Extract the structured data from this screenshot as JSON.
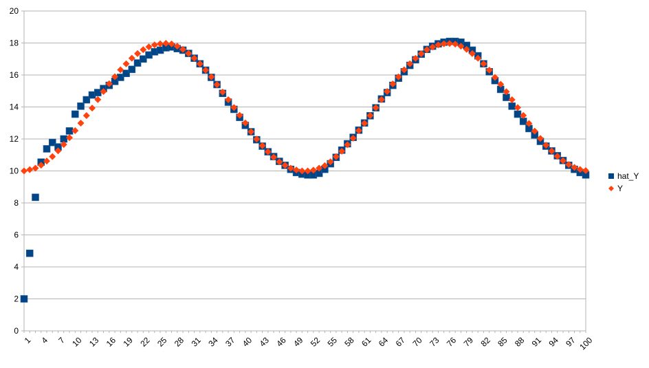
{
  "chart_data": {
    "type": "scatter",
    "xlim": [
      1,
      100
    ],
    "ylim": [
      0,
      20
    ],
    "x_tick_labels": [
      "1",
      "4",
      "7",
      "10",
      "13",
      "16",
      "19",
      "22",
      "25",
      "28",
      "31",
      "34",
      "37",
      "40",
      "43",
      "46",
      "49",
      "52",
      "55",
      "58",
      "61",
      "64",
      "67",
      "70",
      "73",
      "76",
      "79",
      "82",
      "85",
      "88",
      "91",
      "94",
      "97",
      "100"
    ],
    "y_tick_labels": [
      "0",
      "2",
      "4",
      "6",
      "8",
      "10",
      "12",
      "14",
      "16",
      "18",
      "20"
    ],
    "grid": "horizontal",
    "legend": "right",
    "series": [
      {
        "name": "hat_Y",
        "marker": "square",
        "color": "#004586",
        "values": [
          2.0,
          4.85,
          8.35,
          10.55,
          11.38,
          11.78,
          11.5,
          12.0,
          12.5,
          13.55,
          14.05,
          14.45,
          14.75,
          14.9,
          15.15,
          15.35,
          15.6,
          15.85,
          16.1,
          16.35,
          16.75,
          17.0,
          17.25,
          17.45,
          17.55,
          17.7,
          17.75,
          17.65,
          17.55,
          17.35,
          17.05,
          16.7,
          16.3,
          15.85,
          15.4,
          14.85,
          14.3,
          13.85,
          13.35,
          12.85,
          12.45,
          11.95,
          11.55,
          11.2,
          10.9,
          10.6,
          10.35,
          10.1,
          9.9,
          9.8,
          9.75,
          9.75,
          9.85,
          10.1,
          10.45,
          10.85,
          11.3,
          11.7,
          12.1,
          12.55,
          13.0,
          13.45,
          13.95,
          14.5,
          14.9,
          15.35,
          15.8,
          16.2,
          16.6,
          16.95,
          17.3,
          17.6,
          17.8,
          17.95,
          18.05,
          18.1,
          18.1,
          18.05,
          17.85,
          17.55,
          17.2,
          16.7,
          16.2,
          15.65,
          15.1,
          14.6,
          14.05,
          13.55,
          13.1,
          12.65,
          12.25,
          11.85,
          11.55,
          11.25,
          10.95,
          10.65,
          10.35,
          10.1,
          9.9,
          9.75
        ]
      },
      {
        "name": "Y",
        "marker": "diamond",
        "color": "#ff420e",
        "values": [
          10.0,
          10.08,
          10.17,
          10.36,
          10.62,
          10.9,
          11.26,
          11.65,
          12.08,
          12.52,
          12.99,
          13.46,
          13.93,
          14.46,
          14.97,
          15.45,
          15.89,
          16.32,
          16.7,
          17.05,
          17.34,
          17.58,
          17.76,
          17.88,
          17.95,
          17.98,
          17.94,
          17.8,
          17.6,
          17.35,
          17.05,
          16.7,
          16.3,
          15.88,
          15.4,
          14.93,
          14.45,
          13.96,
          13.48,
          13.0,
          12.45,
          11.99,
          11.58,
          11.2,
          10.86,
          10.57,
          10.35,
          10.17,
          10.06,
          10.0,
          10.0,
          10.05,
          10.17,
          10.33,
          10.57,
          10.89,
          11.23,
          11.64,
          12.05,
          12.52,
          12.98,
          13.46,
          13.95,
          14.46,
          14.97,
          15.44,
          15.88,
          16.32,
          16.7,
          17.04,
          17.33,
          17.58,
          17.75,
          17.88,
          17.95,
          17.97,
          17.93,
          17.8,
          17.6,
          17.34,
          17.05,
          16.7,
          16.3,
          15.85,
          15.42,
          14.95,
          14.45,
          13.96,
          13.47,
          12.97,
          12.49,
          12.03,
          11.61,
          11.25,
          10.92,
          10.64,
          10.4,
          10.22,
          10.09,
          10.02
        ]
      }
    ]
  }
}
